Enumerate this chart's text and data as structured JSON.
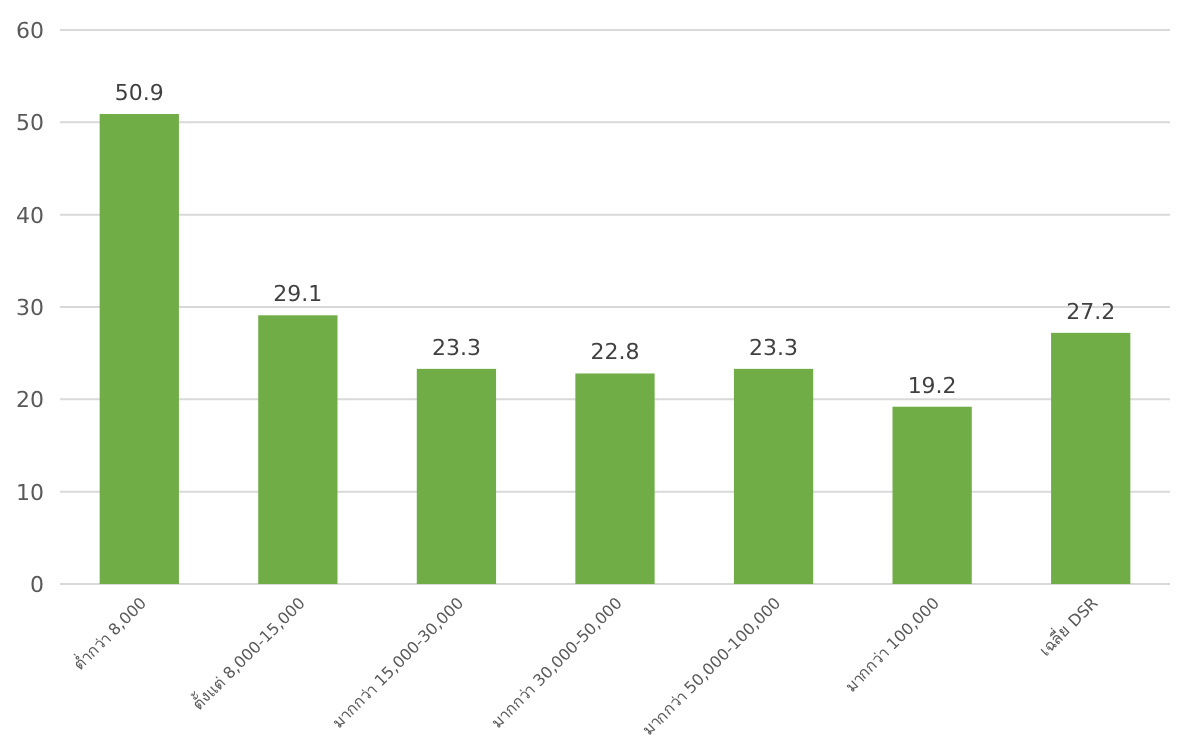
{
  "chart_data": {
    "type": "bar",
    "categories": [
      "ต่ำกว่า 8,000",
      "ตั้งแต่ 8,000-15,000",
      "มากกว่า 15,000-30,000",
      "มากกว่า 30,000-50,000",
      "มากกว่า 50,000-100,000",
      "มากกว่า 100,000",
      "เฉลี่ย DSR"
    ],
    "values": [
      50.9,
      29.1,
      23.3,
      22.8,
      23.3,
      19.2,
      27.2
    ],
    "color": "#70ad47",
    "data_labels": true,
    "grid": "y",
    "ylim": [
      0,
      60
    ],
    "yticks": [
      0,
      10,
      20,
      30,
      40,
      50,
      60
    ]
  }
}
